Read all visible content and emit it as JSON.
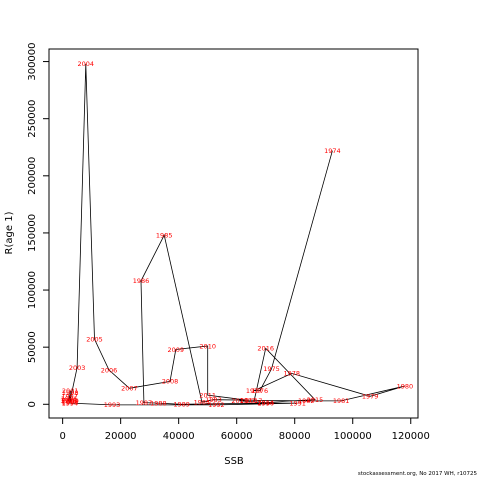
{
  "chart_data": {
    "type": "line",
    "xlabel": "SSB",
    "ylabel": "R(age 1)",
    "xlim": [
      -4700,
      122500
    ],
    "ylim": [
      -12000,
      311000
    ],
    "xticks": [
      0,
      20000,
      40000,
      60000,
      80000,
      100000,
      120000
    ],
    "yticks": [
      0,
      50000,
      100000,
      150000,
      200000,
      250000,
      300000
    ],
    "line_color": "#000000",
    "label_color": "#ff0000",
    "grid": false,
    "points": [
      {
        "year": "1974",
        "x": 93000,
        "y": 222000
      },
      {
        "year": "1975",
        "x": 72000,
        "y": 31000
      },
      {
        "year": "1976",
        "x": 68000,
        "y": 12000
      },
      {
        "year": "1977",
        "x": 66000,
        "y": 12000
      },
      {
        "year": "1978",
        "x": 79000,
        "y": 27000
      },
      {
        "year": "1979",
        "x": 106000,
        "y": 7000
      },
      {
        "year": "1980",
        "x": 118000,
        "y": 16000
      },
      {
        "year": "1981",
        "x": 96000,
        "y": 3000
      },
      {
        "year": "1982",
        "x": 84000,
        "y": 3000
      },
      {
        "year": "1983",
        "x": 52000,
        "y": 4000
      },
      {
        "year": "1984",
        "x": 48000,
        "y": 2000
      },
      {
        "year": "1985",
        "x": 35000,
        "y": 148000
      },
      {
        "year": "1986",
        "x": 27000,
        "y": 108000
      },
      {
        "year": "1987",
        "x": 28000,
        "y": 1500
      },
      {
        "year": "1988",
        "x": 33000,
        "y": 1000
      },
      {
        "year": "1989",
        "x": 41000,
        "y": 0
      },
      {
        "year": "1990",
        "x": 70000,
        "y": 1000
      },
      {
        "year": "1991",
        "x": 81000,
        "y": 1000
      },
      {
        "year": "1992",
        "x": 53000,
        "y": -500
      },
      {
        "year": "1993",
        "x": 17000,
        "y": -500
      },
      {
        "year": "1994",
        "x": 2500,
        "y": 1000
      },
      {
        "year": "1995",
        "x": 2000,
        "y": 3000
      },
      {
        "year": "1996",
        "x": 2200,
        "y": 5000
      },
      {
        "year": "1997",
        "x": 2400,
        "y": 7000
      },
      {
        "year": "1998",
        "x": 2600,
        "y": 10000
      },
      {
        "year": "1999",
        "x": 2500,
        "y": 2000
      },
      {
        "year": "2000",
        "x": 2700,
        "y": 3000
      },
      {
        "year": "2001",
        "x": 2600,
        "y": 12000
      },
      {
        "year": "2002",
        "x": 2500,
        "y": 2500
      },
      {
        "year": "2003",
        "x": 5000,
        "y": 32000
      },
      {
        "year": "2004",
        "x": 8000,
        "y": 298000
      },
      {
        "year": "2005",
        "x": 11000,
        "y": 57000
      },
      {
        "year": "2006",
        "x": 16000,
        "y": 30000
      },
      {
        "year": "2007",
        "x": 23000,
        "y": 14000
      },
      {
        "year": "2008",
        "x": 37000,
        "y": 20000
      },
      {
        "year": "2009",
        "x": 39000,
        "y": 48000
      },
      {
        "year": "2010",
        "x": 50000,
        "y": 51000
      },
      {
        "year": "2011",
        "x": 50000,
        "y": 8000
      },
      {
        "year": "2012",
        "x": 64000,
        "y": 3500
      },
      {
        "year": "2013",
        "x": 61000,
        "y": 3000
      },
      {
        "year": "2014",
        "x": 70000,
        "y": 1500
      },
      {
        "year": "2015",
        "x": 87000,
        "y": 4000
      },
      {
        "year": "2016",
        "x": 70000,
        "y": 49000
      },
      {
        "year": "2017",
        "x": 66000,
        "y": 3000
      }
    ]
  },
  "credit": "stockassessment.org,  No  2017  WH,  r10725"
}
